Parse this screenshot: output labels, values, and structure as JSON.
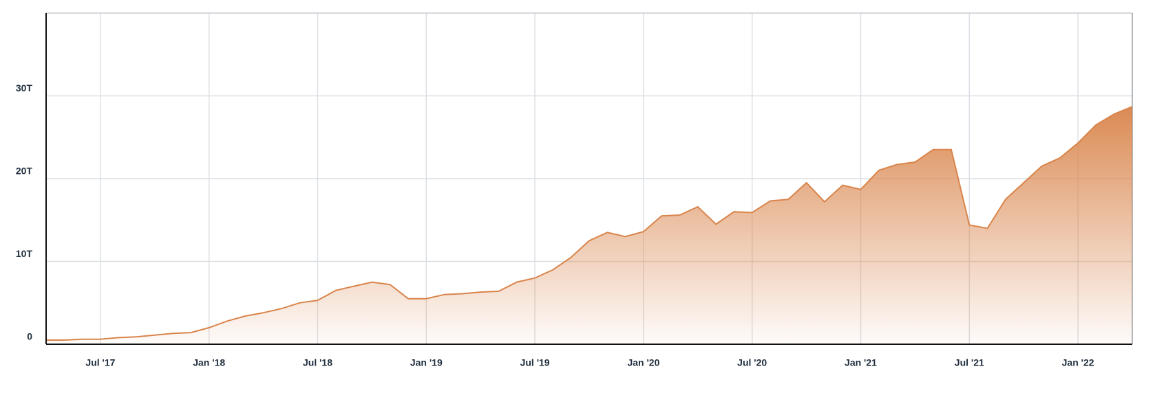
{
  "chart_data": {
    "type": "area",
    "color": "#d9844a",
    "x": [
      "2017-04",
      "2017-05",
      "2017-06",
      "2017-07",
      "2017-08",
      "2017-09",
      "2017-10",
      "2017-11",
      "2017-12",
      "2018-01",
      "2018-02",
      "2018-03",
      "2018-04",
      "2018-05",
      "2018-06",
      "2018-07",
      "2018-08",
      "2018-09",
      "2018-10",
      "2018-11",
      "2018-12",
      "2019-01",
      "2019-02",
      "2019-03",
      "2019-04",
      "2019-05",
      "2019-06",
      "2019-07",
      "2019-08",
      "2019-09",
      "2019-10",
      "2019-11",
      "2019-12",
      "2020-01",
      "2020-02",
      "2020-03",
      "2020-04",
      "2020-05",
      "2020-06",
      "2020-07",
      "2020-08",
      "2020-09",
      "2020-10",
      "2020-11",
      "2020-12",
      "2021-01",
      "2021-02",
      "2021-03",
      "2021-04",
      "2021-05",
      "2021-06",
      "2021-07",
      "2021-08",
      "2021-09",
      "2021-10",
      "2021-11",
      "2021-12",
      "2022-01",
      "2022-02",
      "2022-03",
      "2022-04"
    ],
    "values": [
      0.5,
      0.5,
      0.6,
      0.6,
      0.8,
      0.9,
      1.1,
      1.3,
      1.4,
      2.0,
      2.8,
      3.4,
      3.8,
      4.3,
      5.0,
      5.3,
      6.5,
      7.0,
      7.5,
      7.2,
      5.5,
      5.5,
      6.0,
      6.1,
      6.3,
      6.4,
      7.5,
      8.0,
      9.0,
      10.5,
      12.5,
      13.5,
      13.0,
      13.6,
      15.5,
      15.6,
      16.6,
      14.5,
      16.0,
      15.9,
      17.3,
      17.5,
      19.5,
      17.2,
      19.2,
      18.7,
      21.0,
      21.7,
      22.0,
      23.5,
      23.5,
      14.4,
      14.0,
      17.5,
      19.5,
      21.5,
      22.5,
      24.3,
      26.5,
      27.8,
      28.7
    ],
    "xlim": [
      "2017-04",
      "2022-04"
    ],
    "xticks": [
      {
        "value": "2017-07",
        "label": "Jul '17"
      },
      {
        "value": "2018-01",
        "label": "Jan '18"
      },
      {
        "value": "2018-07",
        "label": "Jul '18"
      },
      {
        "value": "2019-01",
        "label": "Jan '19"
      },
      {
        "value": "2019-07",
        "label": "Jul '19"
      },
      {
        "value": "2020-01",
        "label": "Jan '20"
      },
      {
        "value": "2020-07",
        "label": "Jul '20"
      },
      {
        "value": "2021-01",
        "label": "Jan '21"
      },
      {
        "value": "2021-07",
        "label": "Jul '21"
      },
      {
        "value": "2022-01",
        "label": "Jan '22"
      }
    ],
    "ylim": [
      0,
      40
    ],
    "yticks": [
      0,
      {
        "value": 10,
        "label": "10T"
      },
      {
        "value": 20,
        "label": "20T"
      },
      {
        "value": 30,
        "label": "30T"
      }
    ],
    "grid": true
  }
}
